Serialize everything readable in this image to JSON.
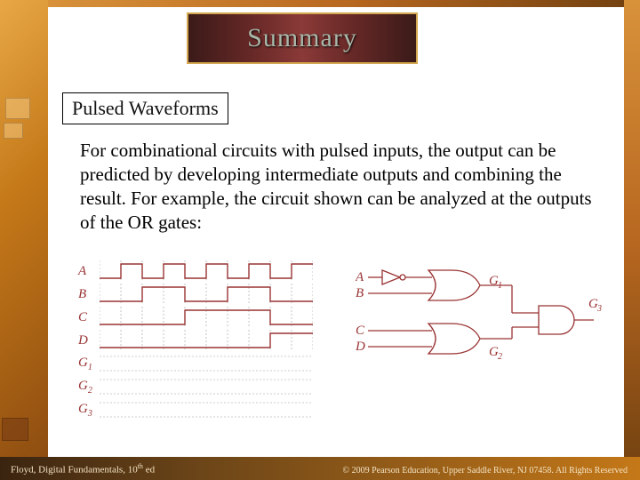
{
  "title": "Summary",
  "section_label": "Pulsed Waveforms",
  "body_text": "For combinational circuits with pulsed inputs, the output can be predicted by developing intermediate outputs and combining the result. For example, the circuit shown can be analyzed at the outputs of the OR gates:",
  "waveforms": {
    "n_divisions": 10,
    "div_width": 24,
    "height_high": 4,
    "height_low": 20,
    "signals": [
      {
        "label_html": "A",
        "pattern": [
          0,
          1,
          0,
          1,
          0,
          1,
          0,
          1,
          0,
          1
        ]
      },
      {
        "label_html": "B",
        "pattern": [
          0,
          0,
          1,
          1,
          0,
          0,
          1,
          1,
          0,
          0
        ]
      },
      {
        "label_html": "C",
        "pattern": [
          0,
          0,
          0,
          0,
          1,
          1,
          1,
          1,
          0,
          0
        ]
      },
      {
        "label_html": "D",
        "pattern": [
          0,
          0,
          0,
          0,
          0,
          0,
          0,
          0,
          1,
          1
        ]
      }
    ],
    "blank_rows": [
      {
        "label_html": "G<sub>1</sub>"
      },
      {
        "label_html": "G<sub>2</sub>"
      },
      {
        "label_html": "G<sub>3</sub>"
      }
    ],
    "color": "#993333"
  },
  "circuit": {
    "inputs": [
      "A",
      "B",
      "C",
      "D"
    ],
    "gates": [
      {
        "name": "G1",
        "type": "OR",
        "sub": "1"
      },
      {
        "name": "G2",
        "type": "OR",
        "sub": "2"
      },
      {
        "name": "G3",
        "type": "AND",
        "sub": "3"
      }
    ],
    "colors": {
      "stroke": "#993333",
      "fill": "#ffffff"
    }
  },
  "footer": {
    "left": "Floyd, Digital Fundamentals, 10th ed",
    "right": "© 2009 Pearson Education, Upper Saddle River, NJ 07458. All Rights Reserved"
  },
  "style": {
    "title_color": "#aab8aa",
    "title_bg_gradient": [
      "#3a1a18",
      "#8a3a38",
      "#3a1a18"
    ],
    "title_border": "#d4a850",
    "body_fontsize": 21,
    "label_color": "#993333",
    "slide_bg": "#ffffff",
    "footer_color": "#f4e4c4"
  }
}
